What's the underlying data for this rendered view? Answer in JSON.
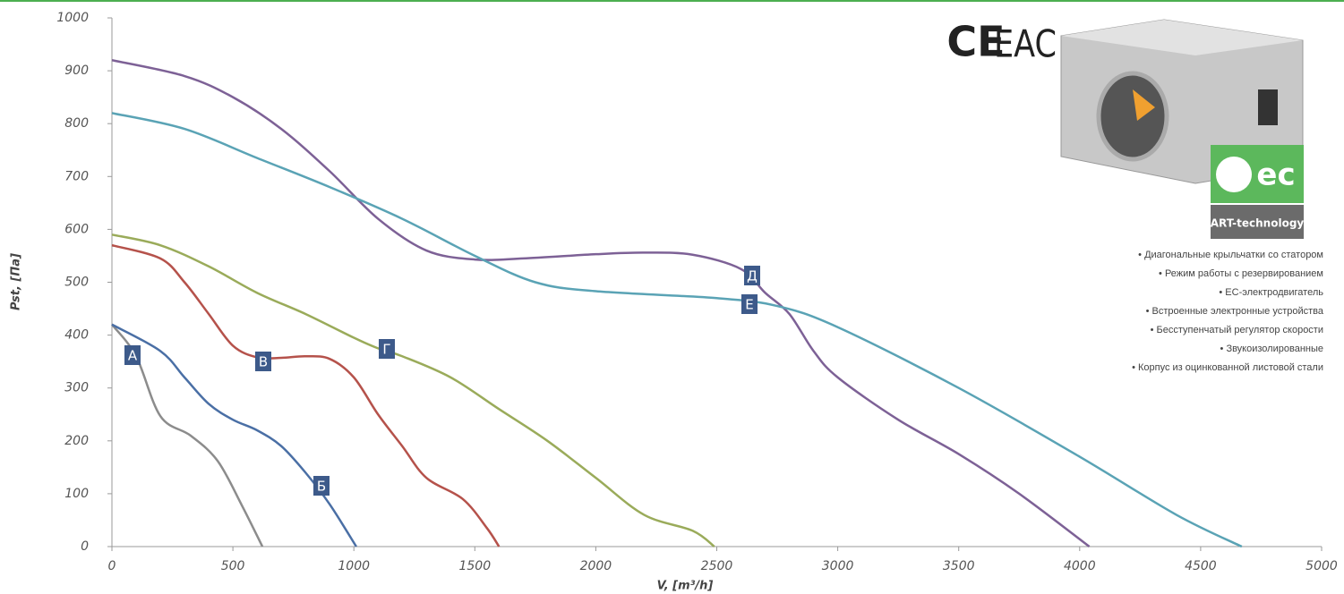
{
  "chart_data": {
    "type": "line",
    "x_label": "V, [m³/h]",
    "y_label": "Pst, [Па]",
    "xlim": [
      0,
      5000
    ],
    "xticks": [
      0,
      500,
      1000,
      1500,
      2000,
      2500,
      3000,
      3500,
      4000,
      4500,
      5000
    ],
    "ylim": [
      0,
      1000
    ],
    "yticks": [
      0,
      100,
      200,
      300,
      400,
      500,
      600,
      700,
      800,
      900,
      1000
    ],
    "grid": false,
    "series": [
      {
        "name": "А",
        "color": "#8c8c8c",
        "x": [
          0,
          100,
          200,
          325,
          437,
          537,
          622
        ],
        "values": [
          420,
          360,
          247,
          210,
          162,
          78,
          0
        ]
      },
      {
        "name": "Б",
        "color": "#4a6fa5",
        "x": [
          0,
          200,
          300,
          400,
          500,
          600,
          700,
          800,
          900,
          1010
        ],
        "values": [
          420,
          370,
          320,
          270,
          240,
          220,
          190,
          140,
          80,
          0
        ]
      },
      {
        "name": "В",
        "color": "#b5524b",
        "x": [
          0,
          200,
          300,
          400,
          500,
          600,
          700,
          800,
          900,
          1000,
          1100,
          1200,
          1300,
          1450,
          1550,
          1600
        ],
        "values": [
          570,
          545,
          500,
          440,
          380,
          358,
          357,
          360,
          355,
          320,
          250,
          190,
          130,
          90,
          35,
          0
        ]
      },
      {
        "name": "Г",
        "color": "#9aab5a",
        "x": [
          0,
          200,
          400,
          600,
          800,
          1000,
          1100,
          1200,
          1400,
          1600,
          1800,
          2000,
          2200,
          2400,
          2490
        ],
        "values": [
          590,
          570,
          530,
          480,
          440,
          395,
          375,
          360,
          320,
          260,
          200,
          130,
          60,
          30,
          0
        ]
      },
      {
        "name": "Д",
        "color": "#7d6196",
        "x": [
          0,
          300,
          500,
          700,
          900,
          1100,
          1300,
          1500,
          1700,
          2000,
          2200,
          2400,
          2600,
          2700,
          2800,
          2900,
          3000,
          3250,
          3500,
          3750,
          4040
        ],
        "values": [
          920,
          890,
          850,
          790,
          710,
          620,
          560,
          543,
          545,
          553,
          556,
          552,
          525,
          480,
          440,
          370,
          320,
          240,
          175,
          100,
          0
        ]
      },
      {
        "name": "Е",
        "color": "#5aa3b5",
        "x": [
          0,
          300,
          600,
          900,
          1200,
          1500,
          1750,
          2000,
          2500,
          2750,
          3000,
          3500,
          4000,
          4400,
          4670
        ],
        "values": [
          820,
          790,
          735,
          680,
          620,
          550,
          500,
          483,
          470,
          455,
          415,
          300,
          170,
          60,
          0
        ]
      }
    ]
  },
  "badges": {
    "ce": "CE",
    "eac": "EAC",
    "ec": "ec",
    "technology": "ART-technology"
  },
  "features": [
    "• Диагональные крыльчатки со статором",
    "• Режим работы с резервированием",
    "• ЕС-электродвигатель",
    "• Встроенные электронные устройства",
    "• Бесступенчатый регулятор скорости",
    "• Звукоизолированные",
    "• Корпус из оцинкованной листовой стали"
  ]
}
